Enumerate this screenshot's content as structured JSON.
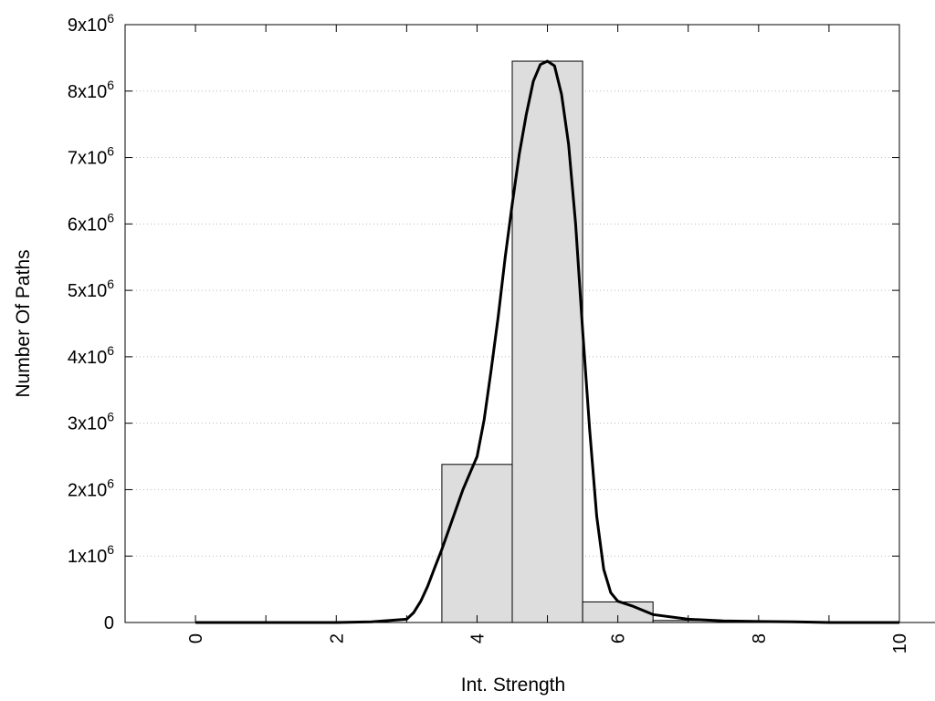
{
  "chart_data": {
    "type": "bar",
    "title": "",
    "xlabel": "Int. Strength",
    "ylabel": "Number Of Paths",
    "xlim": [
      -1,
      10
    ],
    "ylim": [
      0,
      9000000
    ],
    "grid": {
      "horizontal_dotted": true,
      "vertical": false
    },
    "x_ticks": [
      0,
      2,
      4,
      6,
      8,
      10
    ],
    "x_tick_labels": [
      "0",
      "2",
      "4",
      "6",
      "8",
      "10"
    ],
    "y_ticks": [
      {
        "value": 0,
        "mantissa": "0",
        "exponent": ""
      },
      {
        "value": 1000000,
        "mantissa": "1x10",
        "exponent": "6"
      },
      {
        "value": 2000000,
        "mantissa": "2x10",
        "exponent": "6"
      },
      {
        "value": 3000000,
        "mantissa": "3x10",
        "exponent": "6"
      },
      {
        "value": 4000000,
        "mantissa": "4x10",
        "exponent": "6"
      },
      {
        "value": 5000000,
        "mantissa": "5x10",
        "exponent": "6"
      },
      {
        "value": 6000000,
        "mantissa": "6x10",
        "exponent": "6"
      },
      {
        "value": 7000000,
        "mantissa": "7x10",
        "exponent": "6"
      },
      {
        "value": 8000000,
        "mantissa": "8x10",
        "exponent": "6"
      },
      {
        "value": 9000000,
        "mantissa": "9x10",
        "exponent": "6"
      }
    ],
    "bars": [
      {
        "x": 0,
        "value": 0
      },
      {
        "x": 1,
        "value": 0
      },
      {
        "x": 2,
        "value": 0
      },
      {
        "x": 3,
        "value": 0
      },
      {
        "x": 4,
        "value": 2380000
      },
      {
        "x": 5,
        "value": 8450000
      },
      {
        "x": 6,
        "value": 310000
      },
      {
        "x": 7,
        "value": 30000
      },
      {
        "x": 8,
        "value": 10000
      },
      {
        "x": 9,
        "value": 0
      },
      {
        "x": 10,
        "value": 0
      }
    ],
    "bar_width": 1,
    "curve": {
      "x": [
        0,
        1,
        2,
        2.5,
        3,
        3.1,
        3.2,
        3.3,
        3.4,
        3.5,
        3.6,
        3.7,
        3.8,
        3.9,
        4.0,
        4.1,
        4.2,
        4.3,
        4.4,
        4.5,
        4.6,
        4.7,
        4.8,
        4.9,
        5.0,
        5.1,
        5.2,
        5.3,
        5.4,
        5.5,
        5.6,
        5.7,
        5.8,
        5.9,
        6.0,
        6.2,
        6.5,
        7.0,
        7.5,
        8.0,
        8.5,
        9.0,
        9.5,
        10.0
      ],
      "y": [
        0,
        0,
        0,
        10000,
        50000,
        150000,
        320000,
        550000,
        830000,
        1100000,
        1400000,
        1700000,
        2000000,
        2250000,
        2500000,
        3050000,
        3800000,
        4600000,
        5500000,
        6300000,
        7050000,
        7650000,
        8150000,
        8400000,
        8450000,
        8380000,
        7950000,
        7200000,
        6000000,
        4400000,
        2900000,
        1600000,
        800000,
        450000,
        320000,
        250000,
        120000,
        50000,
        25000,
        15000,
        10000,
        0,
        0,
        0
      ]
    },
    "colors": {
      "bar_fill": "#dddddd",
      "bar_stroke": "#000000",
      "curve": "#000000",
      "grid": "#bbbbbb"
    }
  }
}
